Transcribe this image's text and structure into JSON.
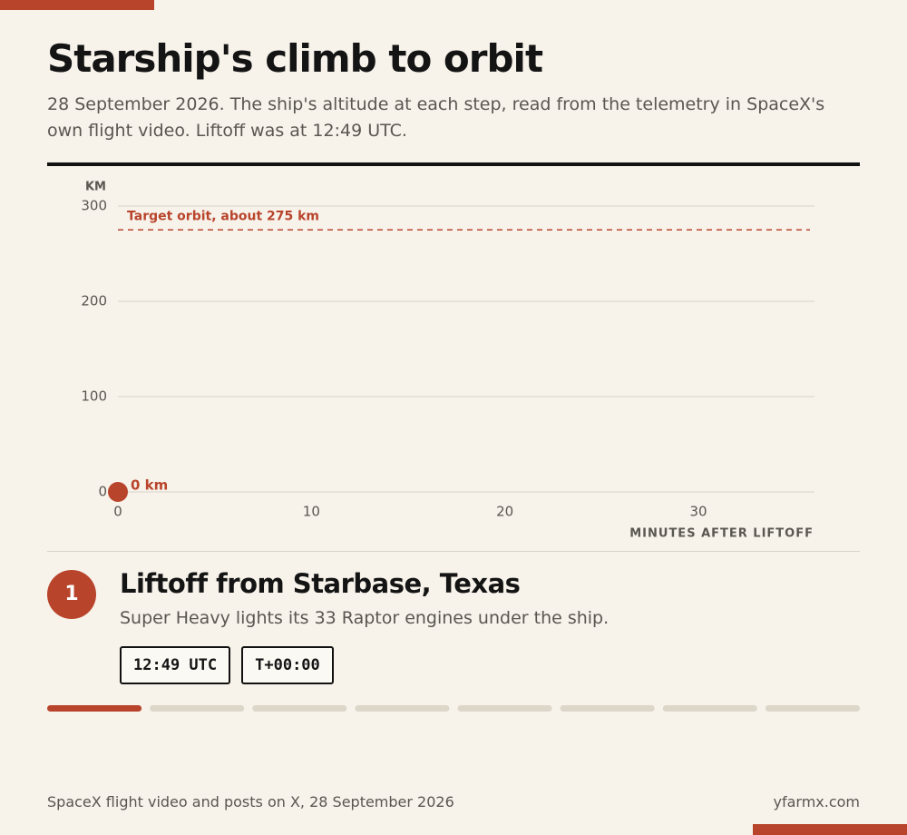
{
  "header": {
    "title": "Starship's climb to orbit",
    "subtitle": "28 September 2026. The ship's altitude at each step, read from the telemetry in SpaceX's own flight video. Liftoff was at 12:49 UTC."
  },
  "chart_data": {
    "type": "scatter",
    "y_label": "KM",
    "x_label": "MINUTES AFTER LIFTOFF",
    "x": [
      0
    ],
    "series": [
      {
        "color": "#b9442c",
        "values": [
          0
        ],
        "value_labels": [
          "0 km"
        ]
      }
    ],
    "xlim": [
      0,
      36
    ],
    "ylim": [
      0,
      300
    ],
    "xticks": [
      0,
      10,
      20,
      30
    ],
    "yticks": [
      0,
      100,
      200,
      300
    ],
    "grid": true,
    "reference_line": {
      "value": 275,
      "label": "Target orbit, about 275 km",
      "color": "#b9442c"
    }
  },
  "step": {
    "number": 1,
    "title": "Liftoff from Starbase, Texas",
    "text": "Super Heavy lights its 33 Raptor engines under the ship.",
    "tags": [
      "12:49 UTC",
      "T+00:00"
    ]
  },
  "progress": {
    "steps": 8,
    "current": 1
  },
  "footer": {
    "source": "SpaceX flight video and posts on X, 28 September 2026",
    "credit": "yfarmx.com"
  }
}
